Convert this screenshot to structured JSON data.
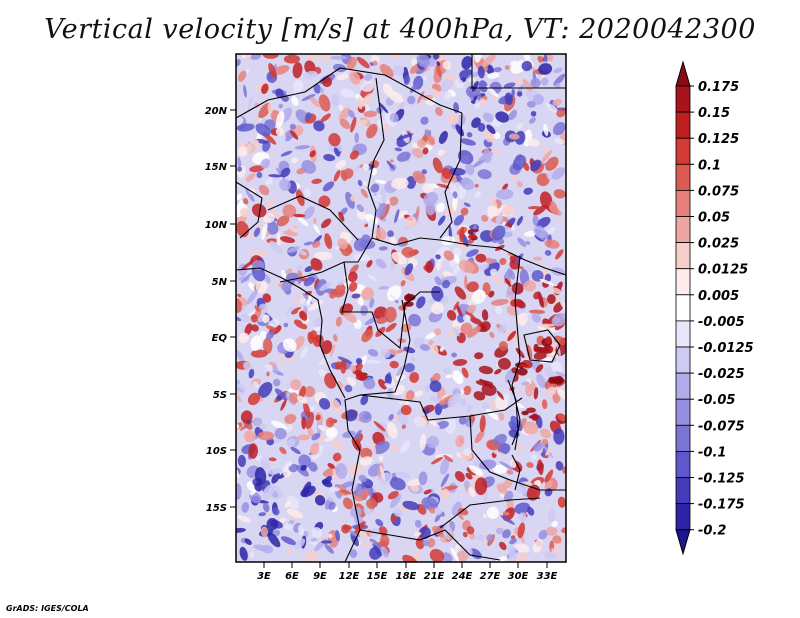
{
  "title": "Vertical velocity [m/s] at 400hPa, VT: 2020042300",
  "footer": "GrADS: IGES/COLA",
  "map": {
    "lat_ticks": [
      "20N",
      "15N",
      "10N",
      "5N",
      "EQ",
      "5S",
      "10S",
      "15S"
    ],
    "lon_ticks": [
      "3E",
      "6E",
      "9E",
      "12E",
      "15E",
      "18E",
      "21E",
      "24E",
      "27E",
      "30E",
      "33E"
    ]
  },
  "colorbar": {
    "labels": [
      "0.175",
      "0.15",
      "0.125",
      "0.1",
      "0.075",
      "0.05",
      "0.025",
      "0.0125",
      "0.005",
      "-0.005",
      "-0.0125",
      "-0.025",
      "-0.05",
      "-0.075",
      "-0.1",
      "-0.125",
      "-0.175",
      "-0.2"
    ],
    "colors": [
      "#8b0a14",
      "#a8141c",
      "#c01f22",
      "#d23a34",
      "#db5b50",
      "#e5807a",
      "#eda6a2",
      "#f6cfcb",
      "#fdeceb",
      "#ffffff",
      "#e8e6fb",
      "#cdcaf3",
      "#b1adea",
      "#9591e0",
      "#7a74d5",
      "#5e59ca",
      "#433db9",
      "#2b24a6",
      "#1d168e"
    ]
  }
}
